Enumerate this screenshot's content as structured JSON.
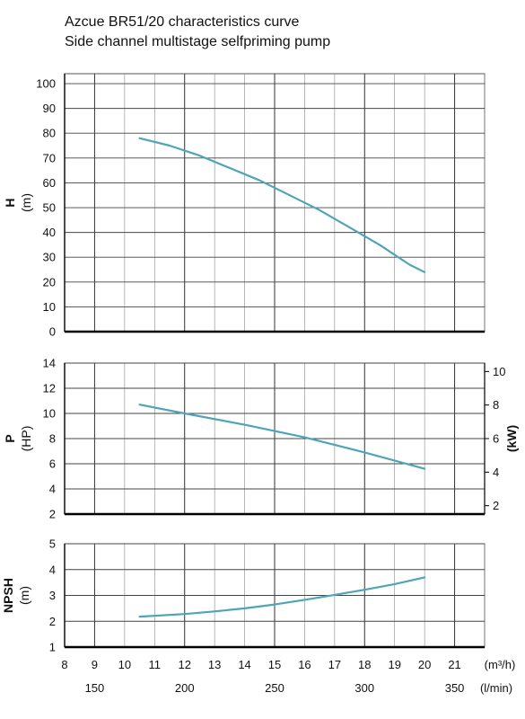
{
  "title": "Azcue BR51/20 characteristics curve",
  "subtitle": "Side channel multistage selfpriming pump",
  "colors": {
    "curve": "#4ea5b6",
    "grid": "#555555",
    "axis": "#000000"
  },
  "chart_data": [
    {
      "type": "line",
      "name": "head",
      "ylabel": "H",
      "yunit": "(m)",
      "ylim": [
        0,
        104
      ],
      "yticks": [
        0,
        10,
        20,
        30,
        40,
        50,
        60,
        70,
        80,
        90,
        100
      ],
      "xlim": [
        8,
        22
      ],
      "grid": true,
      "x": [
        10.5,
        11.5,
        12.5,
        13.5,
        14.5,
        15.5,
        16.5,
        17.5,
        18.5,
        19.5,
        20
      ],
      "y": [
        78,
        75,
        71,
        66,
        61,
        55,
        49,
        42,
        35,
        27,
        24
      ]
    },
    {
      "type": "line",
      "name": "power",
      "ylabel": "P",
      "yunit": "(HP)",
      "ylim": [
        2,
        14
      ],
      "yticks": [
        2,
        4,
        6,
        8,
        10,
        12,
        14
      ],
      "y2label": "(kW)",
      "y2lim": [
        1.5,
        10.5
      ],
      "y2ticks": [
        2,
        4,
        6,
        8,
        10
      ],
      "xlim": [
        8,
        22
      ],
      "grid": true,
      "x": [
        10.5,
        12,
        14,
        16,
        18,
        20
      ],
      "y": [
        10.7,
        10.0,
        9.1,
        8.1,
        6.9,
        5.6
      ]
    },
    {
      "type": "line",
      "name": "npsh",
      "ylabel": "NPSH",
      "yunit": "(m)",
      "ylim": [
        1,
        5
      ],
      "yticks": [
        1,
        2,
        3,
        4,
        5
      ],
      "xlim": [
        8,
        22
      ],
      "grid": true,
      "x": [
        10.5,
        12,
        13,
        14,
        15,
        16,
        17,
        18,
        19,
        20
      ],
      "y": [
        2.18,
        2.28,
        2.38,
        2.5,
        2.65,
        2.83,
        3.02,
        3.22,
        3.44,
        3.7
      ]
    }
  ],
  "x_axis": {
    "ticks": [
      8,
      9,
      10,
      11,
      12,
      13,
      14,
      15,
      16,
      17,
      18,
      19,
      20,
      21
    ],
    "unit": "(m³/h)",
    "secondary_ticks": [
      150,
      200,
      250,
      300,
      350
    ],
    "secondary_unit": "(l/min)"
  }
}
